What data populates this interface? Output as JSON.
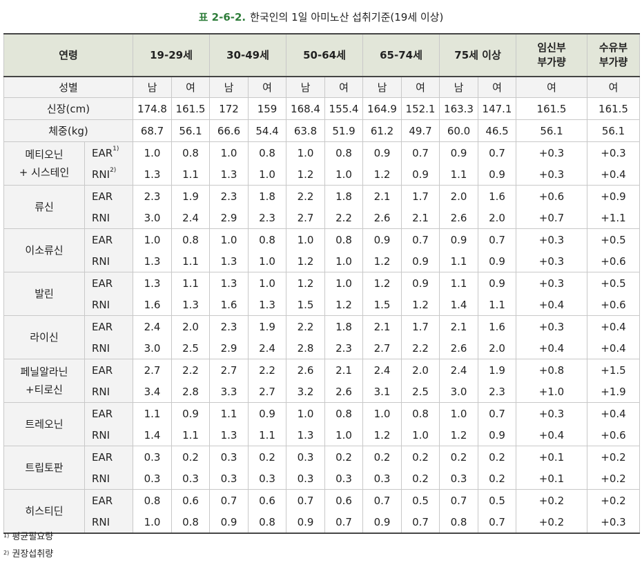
{
  "title": {
    "label": "표 2-6-2.",
    "text": "한국인의 1일 아미노산 섭취기준(19세 이상)"
  },
  "header": {
    "age_label": "연령",
    "age_groups": [
      "19-29세",
      "30-49세",
      "50-64세",
      "65-74세",
      "75세 이상"
    ],
    "pregnant": [
      "임신부",
      "부가량"
    ],
    "lactating": [
      "수유부",
      "부가량"
    ]
  },
  "sex_row": {
    "label": "성별",
    "values": [
      "남",
      "여",
      "남",
      "여",
      "남",
      "여",
      "남",
      "여",
      "남",
      "여",
      "여",
      "여"
    ]
  },
  "height_row": {
    "label": "신장(cm)",
    "values": [
      "174.8",
      "161.5",
      "172",
      "159",
      "168.4",
      "155.4",
      "164.9",
      "152.1",
      "163.3",
      "147.1",
      "161.5",
      "161.5"
    ]
  },
  "weight_row": {
    "label": "체중(kg)",
    "values": [
      "68.7",
      "56.1",
      "66.6",
      "54.4",
      "63.8",
      "51.9",
      "61.2",
      "49.7",
      "60.0",
      "46.5",
      "56.1",
      "56.1"
    ]
  },
  "ear": "EAR",
  "rni": "RNI",
  "fn1": "1)",
  "fn2": "2)",
  "amino_acids": [
    {
      "name": [
        "메티오닌",
        "+ 시스테인"
      ],
      "ear": [
        "1.0",
        "0.8",
        "1.0",
        "0.8",
        "1.0",
        "0.8",
        "0.9",
        "0.7",
        "0.9",
        "0.7",
        "+0.3",
        "+0.3"
      ],
      "rni": [
        "1.3",
        "1.1",
        "1.3",
        "1.0",
        "1.2",
        "1.0",
        "1.2",
        "0.9",
        "1.1",
        "0.9",
        "+0.3",
        "+0.4"
      ]
    },
    {
      "name": [
        "류신"
      ],
      "ear": [
        "2.3",
        "1.9",
        "2.3",
        "1.8",
        "2.2",
        "1.8",
        "2.1",
        "1.7",
        "2.0",
        "1.6",
        "+0.6",
        "+0.9"
      ],
      "rni": [
        "3.0",
        "2.4",
        "2.9",
        "2.3",
        "2.7",
        "2.2",
        "2.6",
        "2.1",
        "2.6",
        "2.0",
        "+0.7",
        "+1.1"
      ]
    },
    {
      "name": [
        "이소류신"
      ],
      "ear": [
        "1.0",
        "0.8",
        "1.0",
        "0.8",
        "1.0",
        "0.8",
        "0.9",
        "0.7",
        "0.9",
        "0.7",
        "+0.3",
        "+0.5"
      ],
      "rni": [
        "1.3",
        "1.1",
        "1.3",
        "1.0",
        "1.2",
        "1.0",
        "1.2",
        "0.9",
        "1.1",
        "0.9",
        "+0.3",
        "+0.6"
      ]
    },
    {
      "name": [
        "발린"
      ],
      "ear": [
        "1.3",
        "1.1",
        "1.3",
        "1.0",
        "1.2",
        "1.0",
        "1.2",
        "0.9",
        "1.1",
        "0.9",
        "+0.3",
        "+0.5"
      ],
      "rni": [
        "1.6",
        "1.3",
        "1.6",
        "1.3",
        "1.5",
        "1.2",
        "1.5",
        "1.2",
        "1.4",
        "1.1",
        "+0.4",
        "+0.6"
      ]
    },
    {
      "name": [
        "라이신"
      ],
      "ear": [
        "2.4",
        "2.0",
        "2.3",
        "1.9",
        "2.2",
        "1.8",
        "2.1",
        "1.7",
        "2.1",
        "1.6",
        "+0.3",
        "+0.4"
      ],
      "rni": [
        "3.0",
        "2.5",
        "2.9",
        "2.4",
        "2.8",
        "2.3",
        "2.7",
        "2.2",
        "2.6",
        "2.0",
        "+0.4",
        "+0.4"
      ]
    },
    {
      "name": [
        "페닐알라닌",
        "+티로신"
      ],
      "ear": [
        "2.7",
        "2.2",
        "2.7",
        "2.2",
        "2.6",
        "2.1",
        "2.4",
        "2.0",
        "2.4",
        "1.9",
        "+0.8",
        "+1.5"
      ],
      "rni": [
        "3.4",
        "2.8",
        "3.3",
        "2.7",
        "3.2",
        "2.6",
        "3.1",
        "2.5",
        "3.0",
        "2.3",
        "+1.0",
        "+1.9"
      ]
    },
    {
      "name": [
        "트레오닌"
      ],
      "ear": [
        "1.1",
        "0.9",
        "1.1",
        "0.9",
        "1.0",
        "0.8",
        "1.0",
        "0.8",
        "1.0",
        "0.7",
        "+0.3",
        "+0.4"
      ],
      "rni": [
        "1.4",
        "1.1",
        "1.3",
        "1.1",
        "1.3",
        "1.0",
        "1.2",
        "1.0",
        "1.2",
        "0.9",
        "+0.4",
        "+0.6"
      ]
    },
    {
      "name": [
        "트립토판"
      ],
      "ear": [
        "0.3",
        "0.2",
        "0.3",
        "0.2",
        "0.3",
        "0.2",
        "0.2",
        "0.2",
        "0.2",
        "0.2",
        "+0.1",
        "+0.2"
      ],
      "rni": [
        "0.3",
        "0.3",
        "0.3",
        "0.3",
        "0.3",
        "0.3",
        "0.3",
        "0.2",
        "0.3",
        "0.2",
        "+0.1",
        "+0.2"
      ]
    },
    {
      "name": [
        "히스티딘"
      ],
      "ear": [
        "0.8",
        "0.6",
        "0.7",
        "0.6",
        "0.7",
        "0.6",
        "0.7",
        "0.5",
        "0.7",
        "0.5",
        "+0.2",
        "+0.2"
      ],
      "rni": [
        "1.0",
        "0.8",
        "0.9",
        "0.8",
        "0.9",
        "0.7",
        "0.9",
        "0.7",
        "0.8",
        "0.7",
        "+0.2",
        "+0.3"
      ]
    }
  ],
  "footnotes": [
    {
      "mark": "1)",
      "text": "평균필요량"
    },
    {
      "mark": "2)",
      "text": "권장섭취량"
    }
  ]
}
